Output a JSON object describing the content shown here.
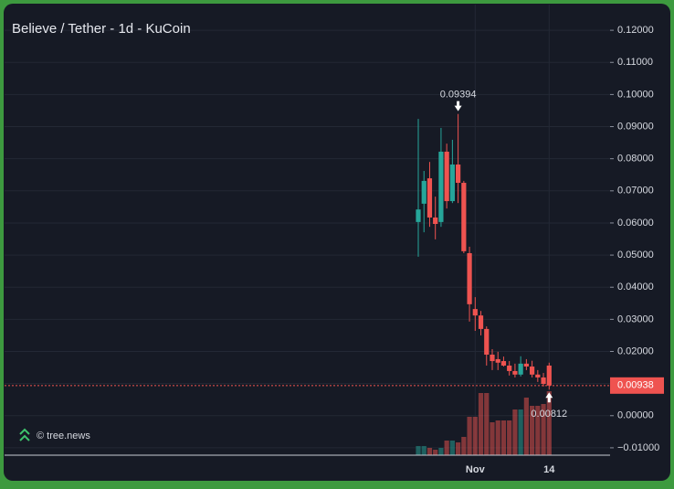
{
  "chart_data": {
    "type": "candlestick",
    "title": "Believe / Tether - 1d - KuCoin",
    "watermark": "© tree.news",
    "categories": [
      null,
      null,
      null,
      null,
      null,
      null,
      null,
      null,
      null,
      null,
      "Nov",
      null,
      null,
      null,
      null,
      null,
      null,
      null,
      null,
      null,
      null,
      null,
      null,
      "14"
    ],
    "open": [
      0.0603,
      0.066,
      0.0739,
      0.0617,
      0.0603,
      0.0822,
      0.0668,
      0.0782,
      0.0725,
      0.0506,
      0.0332,
      0.0312,
      0.027,
      0.019,
      0.0176,
      0.017,
      0.0156,
      0.0139,
      0.0128,
      0.0162,
      0.0153,
      0.0128,
      0.0119,
      0.0156
    ],
    "high": [
      0.0924,
      0.0762,
      0.079,
      0.0682,
      0.0896,
      0.0847,
      0.0859,
      0.09394,
      0.0731,
      0.0526,
      0.0369,
      0.0326,
      0.0278,
      0.0207,
      0.0199,
      0.0184,
      0.017,
      0.0162,
      0.0185,
      0.0176,
      0.0171,
      0.0142,
      0.0133,
      0.0165
    ],
    "low": [
      0.0495,
      0.0571,
      0.0588,
      0.0549,
      0.0588,
      0.0645,
      0.0662,
      0.0662,
      0.0506,
      0.0293,
      0.0264,
      0.025,
      0.0156,
      0.0142,
      0.0142,
      0.0153,
      0.0125,
      0.0119,
      0.0122,
      0.0142,
      0.0119,
      0.0105,
      0.0091,
      0.00812
    ],
    "close": [
      0.0642,
      0.0731,
      0.0617,
      0.0597,
      0.0822,
      0.0668,
      0.0782,
      0.0725,
      0.0512,
      0.0347,
      0.0312,
      0.027,
      0.019,
      0.017,
      0.0165,
      0.0156,
      0.0139,
      0.0128,
      0.0162,
      0.0153,
      0.0128,
      0.0119,
      0.0099,
      0.00938
    ],
    "volume": [
      10,
      10,
      8,
      6,
      8,
      16,
      16,
      14,
      20,
      42,
      42,
      68,
      68,
      36,
      38,
      38,
      38,
      50,
      50,
      63,
      54,
      54,
      56,
      70
    ],
    "up_color": "#26a69a",
    "down_color": "#ef5350",
    "ylim": [
      -0.0123,
      0.128
    ],
    "yticks": [
      {
        "value": -0.01,
        "label": "−0.01000"
      },
      {
        "value": 0,
        "label": "0.00000"
      },
      {
        "value": 0.01,
        "label": "0.01000"
      },
      {
        "value": 0.02,
        "label": "0.02000"
      },
      {
        "value": 0.03,
        "label": "0.03000"
      },
      {
        "value": 0.04,
        "label": "0.04000"
      },
      {
        "value": 0.05,
        "label": "0.05000"
      },
      {
        "value": 0.06,
        "label": "0.06000"
      },
      {
        "value": 0.07,
        "label": "0.07000"
      },
      {
        "value": 0.08,
        "label": "0.08000"
      },
      {
        "value": 0.09,
        "label": "0.09000"
      },
      {
        "value": 0.1,
        "label": "0.10000"
      },
      {
        "value": 0.11,
        "label": "0.11000"
      },
      {
        "value": 0.12,
        "label": "0.12000"
      }
    ],
    "grid": true
  }
}
